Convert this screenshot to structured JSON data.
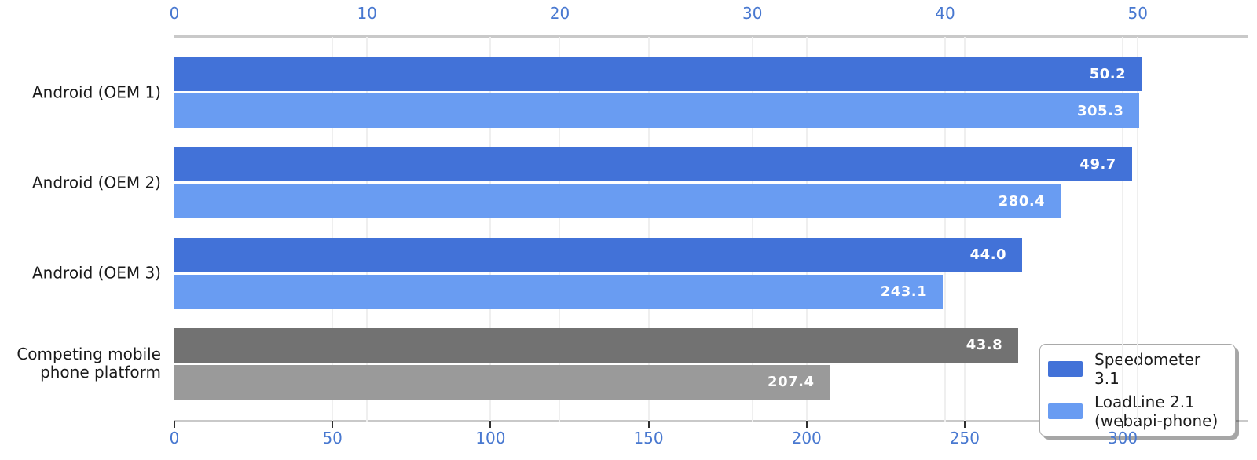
{
  "chart_data": {
    "type": "bar",
    "orientation": "horizontal",
    "title": "",
    "categories": [
      "Android (OEM 1)",
      "Android (OEM 2)",
      "Android (OEM 3)",
      "Competing mobile\nphone platform"
    ],
    "series": [
      {
        "name": "Speedometer 3.1",
        "axis": "top",
        "values": [
          50.2,
          49.7,
          44.0,
          43.8
        ],
        "value_labels": [
          "50.2",
          "49.7",
          "44.0",
          "43.8"
        ],
        "bar_colors": [
          "#4272d8",
          "#4272d8",
          "#4272d8",
          "#727272"
        ]
      },
      {
        "name": "LoadLine 2.1\n(webapi-phone)",
        "axis": "bottom",
        "values": [
          305.3,
          280.4,
          243.1,
          207.4
        ],
        "value_labels": [
          "305.3",
          "280.4",
          "243.1",
          "207.4"
        ],
        "bar_colors": [
          "#699cf2",
          "#699cf2",
          "#699cf2",
          "#9a9a9a"
        ]
      }
    ],
    "top_axis": {
      "tick_values": [
        0,
        10,
        20,
        30,
        40,
        50
      ],
      "tick_labels": [
        "0",
        "10",
        "20",
        "30",
        "40",
        "50"
      ],
      "range": [
        0,
        55.7
      ],
      "label_color": "#4878d0"
    },
    "bottom_axis": {
      "tick_values": [
        0,
        50,
        100,
        150,
        200,
        250,
        300
      ],
      "tick_labels": [
        "0",
        "50",
        "100",
        "150",
        "200",
        "250",
        "300"
      ],
      "range": [
        0,
        339.5
      ],
      "label_color": "#4878d0"
    },
    "grid": true,
    "value_label_color": "#ffffff",
    "legend": {
      "position": "lower-right",
      "entries": [
        {
          "label": "Speedometer 3.1",
          "swatch_color": "#4272d8"
        },
        {
          "label": "LoadLine 2.1\n(webapi-phone)",
          "swatch_color": "#699cf2"
        }
      ]
    }
  }
}
